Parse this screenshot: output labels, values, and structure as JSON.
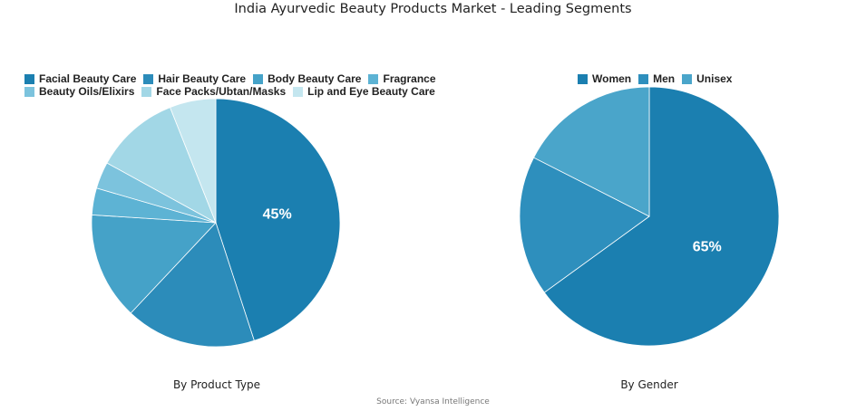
{
  "title": "India Ayurvedic Beauty Products Market - Leading Segments",
  "source": "Source: Vyansa Intelligence",
  "chart_data": [
    {
      "type": "pie",
      "subtitle": "By Product Type",
      "categories": [
        "Facial Beauty Care",
        "Hair Beauty Care",
        "Body Beauty Care",
        "Fragrance",
        "Beauty Oils/Elixirs",
        "Face Packs/Ubtan/Masks",
        "Lip and Eye Beauty Care"
      ],
      "values": [
        45,
        17,
        14,
        3.5,
        3.5,
        11,
        6
      ],
      "colors": [
        "#1b7fb0",
        "#2c8cba",
        "#45a2c8",
        "#5db3d4",
        "#7cc3dd",
        "#a2d7e6",
        "#c4e6ef"
      ],
      "labels": [
        "45%",
        "",
        "",
        "",
        "",
        "",
        ""
      ],
      "legend_position": "top",
      "start_angle_deg": 0,
      "direction": "clockwise"
    },
    {
      "type": "pie",
      "subtitle": "By Gender",
      "categories": [
        "Women",
        "Men",
        "Unisex"
      ],
      "values": [
        65,
        17.5,
        17.5
      ],
      "colors": [
        "#1b7fb0",
        "#2e8fbd",
        "#4aa5ca"
      ],
      "labels": [
        "65%",
        "",
        ""
      ],
      "legend_position": "top",
      "start_angle_deg": 0,
      "direction": "clockwise"
    }
  ]
}
